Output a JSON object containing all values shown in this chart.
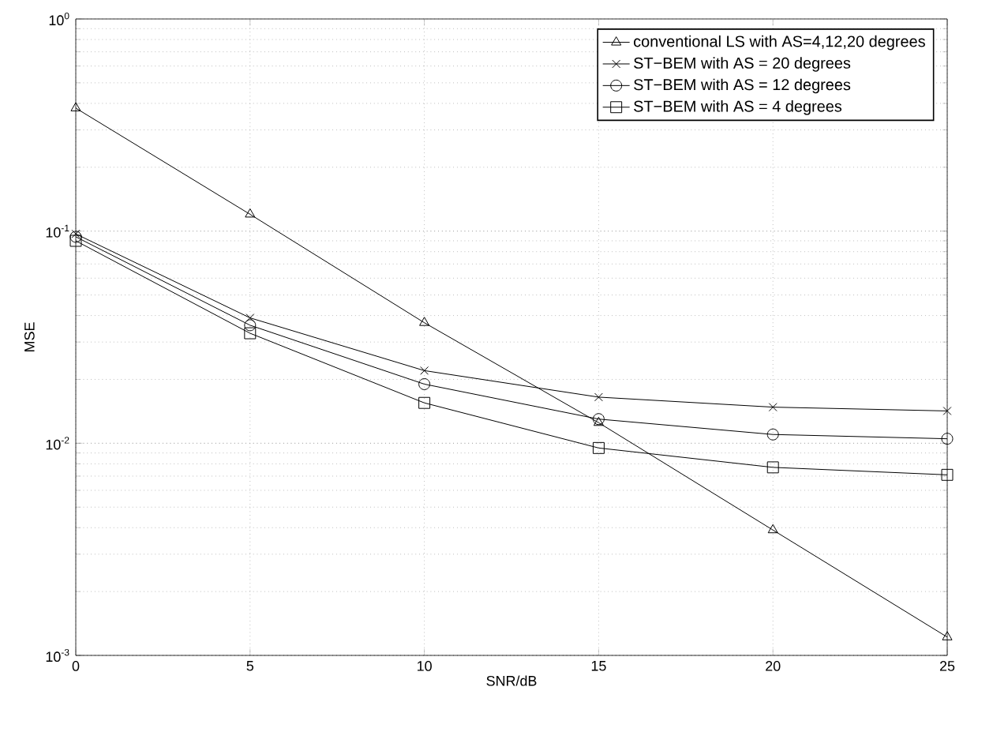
{
  "chart_data": {
    "type": "line",
    "xlabel": "SNR/dB",
    "ylabel": "MSE",
    "log": "y",
    "grid": true,
    "legend": "top right",
    "x": [
      0,
      5,
      10,
      15,
      20,
      25
    ],
    "xlim": [
      0,
      25
    ],
    "xticks": [
      0,
      5,
      10,
      15,
      20,
      25
    ],
    "ylim": [
      0.001,
      1
    ],
    "yticks": [
      {
        "value": 0.001,
        "label": "10$^{-3}$"
      },
      {
        "value": 0.01,
        "label": "10$^{-2}$"
      },
      {
        "value": 0.1,
        "label": "10$^{-1}$"
      },
      {
        "value": 1,
        "label": "10$^{0}$"
      }
    ],
    "series": [
      {
        "name": "conventional  LS with AS=4,12,20 degrees",
        "color": "#000000",
        "marker": "triangle",
        "values": [
          0.38,
          0.12,
          0.037,
          0.0125,
          0.0039,
          0.00122
        ]
      },
      {
        "name": "ST−BEM with AS = 20 degrees",
        "color": "#000000",
        "marker": "cross",
        "values": [
          0.097,
          0.039,
          0.022,
          0.0165,
          0.0148,
          0.0142
        ]
      },
      {
        "name": "ST−BEM with AS = 12 degrees",
        "color": "#000000",
        "marker": "circle",
        "values": [
          0.094,
          0.036,
          0.019,
          0.013,
          0.011,
          0.0105
        ]
      },
      {
        "name": "ST−BEM with AS = 4 degrees",
        "color": "#000000",
        "marker": "square",
        "values": [
          0.09,
          0.033,
          0.0155,
          0.0095,
          0.0077,
          0.0071
        ]
      }
    ]
  }
}
